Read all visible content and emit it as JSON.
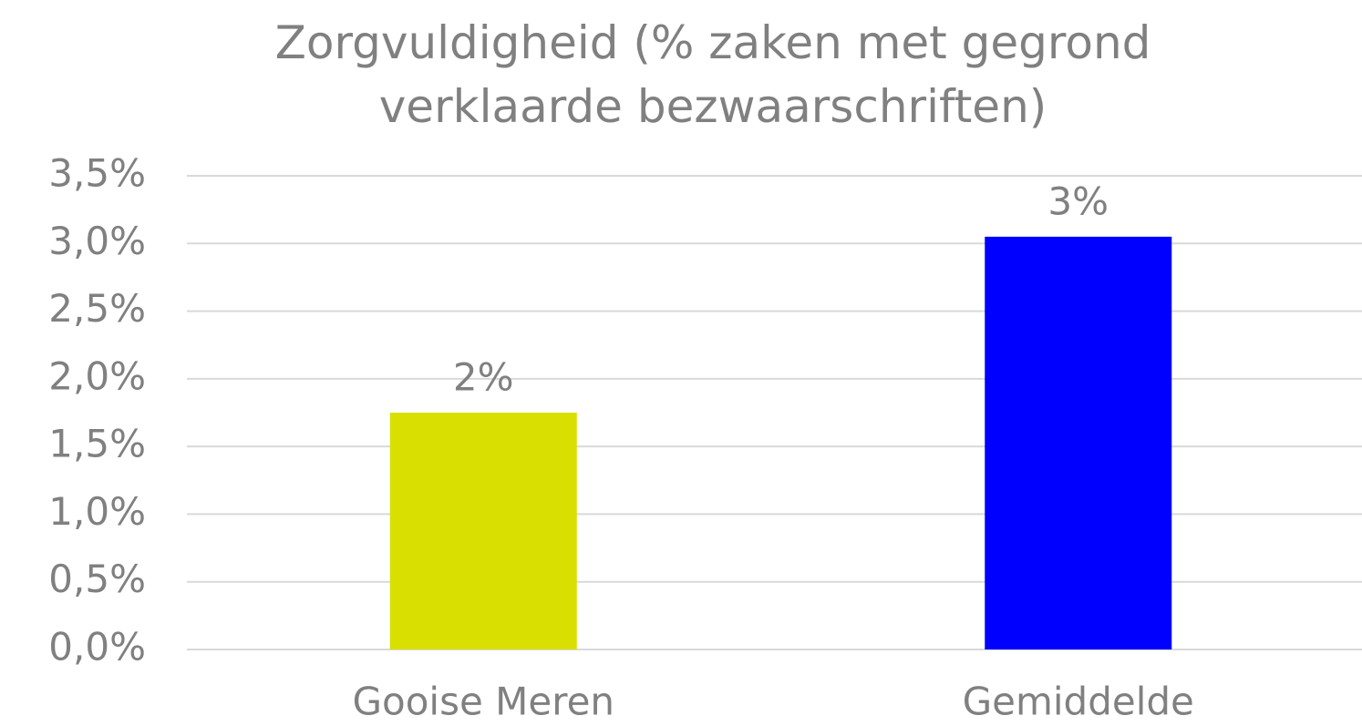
{
  "chart_data": {
    "type": "bar",
    "title": "Zorgvuldigheid (% zaken met gegrond verklaarde bezwaarschriften)",
    "categories": [
      "Gooise Meren",
      "Gemiddelde"
    ],
    "values": [
      1.75,
      3.05
    ],
    "value_labels": [
      "2%",
      "3%"
    ],
    "colors": [
      "#d9e000",
      "#0000ff"
    ],
    "ylim": [
      0,
      3.5
    ],
    "yticks": [
      {
        "value": 0,
        "label": "0,0%"
      },
      {
        "value": 0.5,
        "label": "0,5%"
      },
      {
        "value": 1,
        "label": "1,0%"
      },
      {
        "value": 1.5,
        "label": "1,5%"
      },
      {
        "value": 2,
        "label": "2,0%"
      },
      {
        "value": 2.5,
        "label": "2,5%"
      },
      {
        "value": 3,
        "label": "3,0%"
      },
      {
        "value": 3.5,
        "label": "3,5%"
      }
    ],
    "grid": true
  }
}
